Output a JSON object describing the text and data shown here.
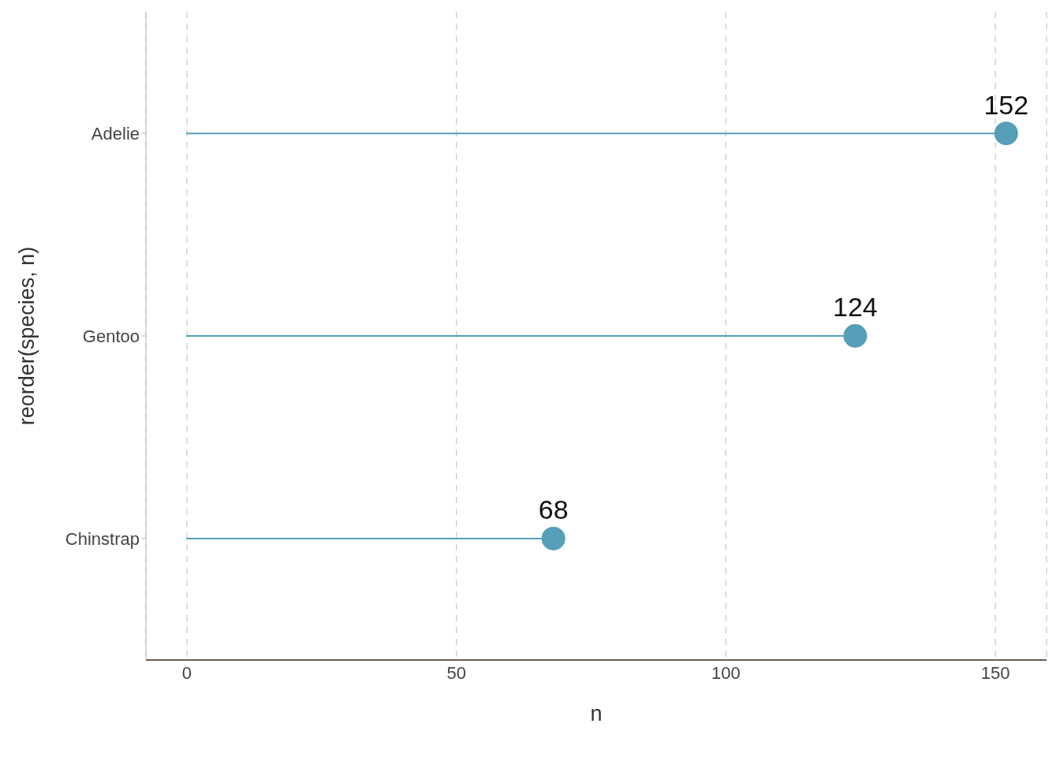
{
  "chart_data": {
    "type": "lollipop",
    "orientation": "horizontal",
    "categories": [
      "Adelie",
      "Gentoo",
      "Chinstrap"
    ],
    "values": [
      152,
      124,
      68
    ],
    "color": "#559fb8",
    "xlim": [
      -7.6,
      159.5
    ],
    "xticks": [
      0,
      50,
      100,
      150
    ],
    "xlabel": "n",
    "ylabel": "reorder(species, n)",
    "grid": "x",
    "data_labels": true,
    "marker": "circle"
  }
}
